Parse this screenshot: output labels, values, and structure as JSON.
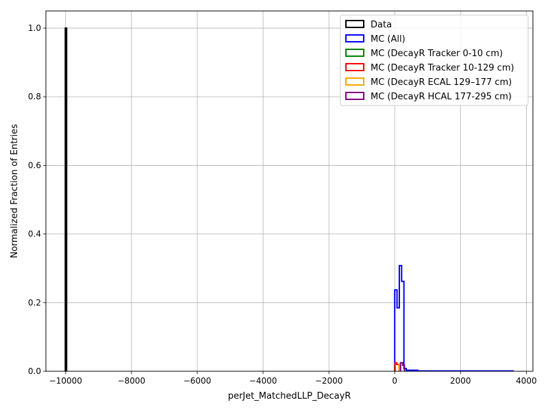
{
  "chart_data": {
    "type": "histogram-step",
    "title": "",
    "xlabel": "perJet_MatchedLLP_DecayR",
    "ylabel": "Normalized Fraction of Entries",
    "xlim": [
      -10600,
      4200
    ],
    "ylim": [
      0,
      1.05
    ],
    "x_ticks": [
      -10000,
      -8000,
      -6000,
      -4000,
      -2000,
      0,
      2000,
      4000
    ],
    "y_ticks": [
      0.0,
      0.2,
      0.4,
      0.6,
      0.8,
      1.0
    ],
    "x_tick_labels": [
      "−10000",
      "−8000",
      "−6000",
      "−4000",
      "−2000",
      "0",
      "2000",
      "4000"
    ],
    "y_tick_labels": [
      "0.0",
      "0.2",
      "0.4",
      "0.6",
      "0.8",
      "1.0"
    ],
    "grid": true,
    "legend_position": "top-right",
    "series": [
      {
        "name": "Data",
        "color": "#000000",
        "bins": [
          [
            -10010,
            -9970,
            1.0
          ]
        ]
      },
      {
        "name": "MC (All)",
        "color": "#0000ff",
        "bins": [
          [
            0,
            70,
            0.237
          ],
          [
            70,
            140,
            0.185
          ],
          [
            140,
            210,
            0.308
          ],
          [
            210,
            280,
            0.262
          ],
          [
            280,
            350,
            0.008
          ],
          [
            350,
            700,
            0.003
          ],
          [
            700,
            3600,
            0.001
          ]
        ]
      },
      {
        "name": "MC (DecayR Tracker 0-10 cm)",
        "color": "#008000",
        "bins": [
          [
            0,
            10,
            0.012
          ]
        ]
      },
      {
        "name": "MC (DecayR Tracker 10-129 cm)",
        "color": "#ff0000",
        "bins": [
          [
            10,
            60,
            0.025
          ],
          [
            60,
            129,
            0.02
          ]
        ]
      },
      {
        "name": "MC (DecayR ECAL 129–177 cm)",
        "color": "#ffa500",
        "bins": [
          [
            129,
            177,
            0.02
          ]
        ]
      },
      {
        "name": "MC (DecayR HCAL 177-295 cm)",
        "color": "#800080",
        "bins": [
          [
            177,
            240,
            0.025
          ],
          [
            240,
            295,
            0.018
          ]
        ]
      }
    ]
  }
}
